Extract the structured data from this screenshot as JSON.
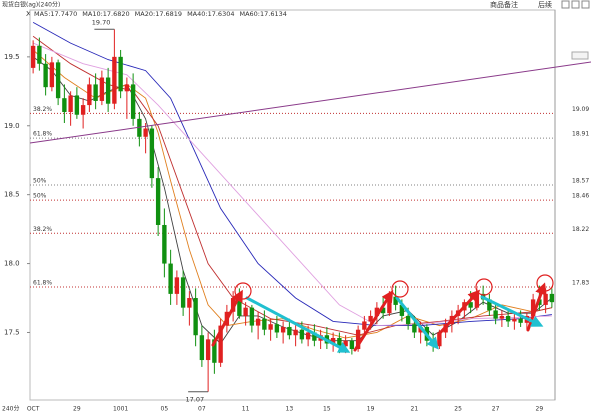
{
  "header": {
    "title": "现货白银(ag)(240分)",
    "close": "X",
    "buttons": [
      "商品备注",
      "后续"
    ]
  },
  "chart_data": {
    "type": "candlestick",
    "period_label": "240分",
    "categories": [
      "OCT",
      null,
      null,
      null,
      null,
      null,
      null,
      "29",
      null,
      null,
      null,
      null,
      null,
      null,
      "1001",
      null,
      null,
      null,
      null,
      null,
      null,
      "05",
      null,
      null,
      null,
      null,
      null,
      "07",
      null,
      null,
      null,
      null,
      null,
      null,
      "11",
      null,
      null,
      null,
      null,
      null,
      null,
      "13",
      null,
      null,
      null,
      null,
      null,
      "15",
      null,
      null,
      null,
      null,
      null,
      null,
      "19",
      null,
      null,
      null,
      null,
      null,
      null,
      "21",
      null,
      null,
      null,
      null,
      null,
      null,
      "25",
      null,
      null,
      null,
      null,
      null,
      "27",
      null,
      null,
      null,
      null,
      null,
      null,
      "29",
      null,
      null
    ],
    "open": [
      19.42,
      19.58,
      19.45,
      19.28,
      19.46,
      19.2,
      19.1,
      19.22,
      19.08,
      19.15,
      19.3,
      19.18,
      19.35,
      19.16,
      19.5,
      19.25,
      19.3,
      19.05,
      18.92,
      18.98,
      18.62,
      18.28,
      18.0,
      17.78,
      17.9,
      17.68,
      17.75,
      17.48,
      17.3,
      17.45,
      17.28,
      17.55,
      17.65,
      17.75,
      17.62,
      17.68,
      17.55,
      17.6,
      17.52,
      17.56,
      17.5,
      17.54,
      17.48,
      17.52,
      17.45,
      17.5,
      17.44,
      17.48,
      17.42,
      17.46,
      17.4,
      17.44,
      17.38,
      17.52,
      17.58,
      17.62,
      17.68,
      17.64,
      17.76,
      17.7,
      17.62,
      17.56,
      17.5,
      17.54,
      17.44,
      17.4,
      17.5,
      17.56,
      17.62,
      17.66,
      17.72,
      17.68,
      17.78,
      17.74,
      17.66,
      17.6,
      17.62,
      17.58,
      17.6,
      17.57,
      17.62,
      17.74,
      17.7,
      17.78
    ],
    "high": [
      19.62,
      19.64,
      19.52,
      19.5,
      19.48,
      19.3,
      19.25,
      19.28,
      19.2,
      19.35,
      19.38,
      19.4,
      19.42,
      19.7,
      19.55,
      19.35,
      19.38,
      19.1,
      19.02,
      19.0,
      18.7,
      18.4,
      18.1,
      17.95,
      17.95,
      17.8,
      17.82,
      17.55,
      17.5,
      17.52,
      17.6,
      17.7,
      17.8,
      17.82,
      17.72,
      17.7,
      17.65,
      17.66,
      17.6,
      17.62,
      17.58,
      17.6,
      17.56,
      17.58,
      17.55,
      17.56,
      17.52,
      17.54,
      17.5,
      17.5,
      17.48,
      17.46,
      17.55,
      17.62,
      17.66,
      17.72,
      17.76,
      17.8,
      17.84,
      17.74,
      17.68,
      17.62,
      17.58,
      17.56,
      17.5,
      17.52,
      17.6,
      17.66,
      17.7,
      17.74,
      17.8,
      17.82,
      17.84,
      17.78,
      17.7,
      17.66,
      17.66,
      17.64,
      17.66,
      17.64,
      17.78,
      17.84,
      17.82,
      17.82
    ],
    "low": [
      19.38,
      19.4,
      19.22,
      19.25,
      19.15,
      19.02,
      19.0,
      19.05,
      18.98,
      19.1,
      19.12,
      19.15,
      19.1,
      19.12,
      19.2,
      19.05,
      19.0,
      18.85,
      18.8,
      18.55,
      18.2,
      17.9,
      17.7,
      17.7,
      17.62,
      17.55,
      17.4,
      17.25,
      17.07,
      17.2,
      17.25,
      17.5,
      17.58,
      17.6,
      17.55,
      17.5,
      17.45,
      17.48,
      17.44,
      17.46,
      17.42,
      17.45,
      17.4,
      17.42,
      17.4,
      17.4,
      17.38,
      17.38,
      17.36,
      17.35,
      17.35,
      17.34,
      17.36,
      17.48,
      17.52,
      17.56,
      17.6,
      17.62,
      17.66,
      17.58,
      17.52,
      17.46,
      17.42,
      17.4,
      17.36,
      17.38,
      17.46,
      17.5,
      17.56,
      17.6,
      17.64,
      17.66,
      17.7,
      17.62,
      17.56,
      17.54,
      17.54,
      17.52,
      17.54,
      17.52,
      17.6,
      17.66,
      17.64,
      17.68
    ],
    "close": [
      19.58,
      19.45,
      19.28,
      19.46,
      19.2,
      19.1,
      19.22,
      19.08,
      19.15,
      19.3,
      19.18,
      19.35,
      19.16,
      19.5,
      19.25,
      19.3,
      19.05,
      18.92,
      18.98,
      18.62,
      18.28,
      18.0,
      17.78,
      17.9,
      17.68,
      17.75,
      17.48,
      17.3,
      17.45,
      17.28,
      17.55,
      17.65,
      17.75,
      17.62,
      17.68,
      17.55,
      17.6,
      17.52,
      17.56,
      17.5,
      17.54,
      17.48,
      17.52,
      17.45,
      17.5,
      17.44,
      17.48,
      17.42,
      17.46,
      17.4,
      17.44,
      17.38,
      17.52,
      17.58,
      17.62,
      17.68,
      17.64,
      17.76,
      17.7,
      17.62,
      17.56,
      17.5,
      17.54,
      17.44,
      17.4,
      17.5,
      17.56,
      17.62,
      17.66,
      17.72,
      17.68,
      17.78,
      17.74,
      17.66,
      17.6,
      17.62,
      17.58,
      17.6,
      17.57,
      17.62,
      17.74,
      17.7,
      17.78,
      17.72
    ],
    "up_color": "#e02020",
    "down_color": "#109010",
    "ma_lines": [
      {
        "name": "MA5:17.7470",
        "color": "#404040",
        "x": [
          0,
          3,
          6,
          9,
          12,
          15,
          18,
          21,
          24,
          27,
          30,
          33,
          36,
          40,
          44,
          48,
          52,
          56,
          60,
          64,
          68,
          72,
          76,
          80,
          83
        ],
        "values": [
          19.5,
          19.4,
          19.22,
          19.18,
          19.25,
          19.3,
          19.05,
          18.55,
          17.95,
          17.55,
          17.42,
          17.62,
          17.62,
          17.54,
          17.48,
          17.44,
          17.44,
          17.62,
          17.66,
          17.48,
          17.58,
          17.72,
          17.64,
          17.64,
          17.75
        ]
      },
      {
        "name": "MA10:17.6820",
        "color": "#e08020",
        "x": [
          0,
          5,
          10,
          15,
          18,
          20,
          22,
          25,
          28,
          31,
          35,
          40,
          45,
          50,
          55,
          60,
          65,
          70,
          75,
          80,
          83
        ],
        "values": [
          19.55,
          19.35,
          19.2,
          19.3,
          19.2,
          18.95,
          18.6,
          18.1,
          17.7,
          17.55,
          17.58,
          17.6,
          17.52,
          17.46,
          17.5,
          17.62,
          17.55,
          17.6,
          17.7,
          17.65,
          17.68
        ]
      },
      {
        "name": "MA20:17.6819",
        "color": "#c03030",
        "x": [
          0,
          6,
          12,
          16,
          20,
          24,
          28,
          32,
          38,
          45,
          52,
          58,
          65,
          72,
          80,
          83
        ],
        "values": [
          19.65,
          19.45,
          19.3,
          19.25,
          19.0,
          18.5,
          18.0,
          17.75,
          17.6,
          17.55,
          17.48,
          17.55,
          17.58,
          17.62,
          17.65,
          17.68
        ]
      },
      {
        "name": "MA40:17.6304",
        "color": "#2828b8",
        "x": [
          0,
          6,
          12,
          18,
          22,
          26,
          30,
          36,
          42,
          48,
          55,
          62,
          70,
          78,
          83
        ],
        "values": [
          19.75,
          19.6,
          19.48,
          19.4,
          19.2,
          18.8,
          18.4,
          18.0,
          17.75,
          17.58,
          17.55,
          17.55,
          17.58,
          17.6,
          17.63
        ]
      },
      {
        "name": "MA60:17.6134",
        "color": "#e0a0e0",
        "x": [
          0,
          8,
          15,
          20,
          26,
          33,
          43,
          49,
          55,
          62,
          70,
          78,
          83
        ],
        "values": [
          19.6,
          19.45,
          19.37,
          19.15,
          18.85,
          18.5,
          18.0,
          17.7,
          17.55,
          17.56,
          17.6,
          17.61,
          17.62
        ]
      }
    ],
    "fib_levels": [
      {
        "ratio": "38.2%",
        "value": 19.09,
        "color": "#c03030"
      },
      {
        "ratio": "61.8%",
        "value": 18.91,
        "color": "#808080"
      },
      {
        "ratio": "50%",
        "value": 18.57,
        "color": "#808080"
      },
      {
        "ratio": "50%",
        "value": 18.46,
        "color": "#c03030"
      },
      {
        "ratio": "38.2%",
        "value": 18.22,
        "color": "#c03030"
      },
      {
        "ratio": "61.8%",
        "value": 17.83,
        "color": "#c03030"
      }
    ],
    "high_label": {
      "value": 19.7,
      "label": "19.70",
      "index": 13
    },
    "low_label": {
      "value": 17.07,
      "label": "17.07",
      "index": 28
    },
    "ylim": [
      17.01,
      19.84
    ],
    "yticks": [
      {
        "value": 17.5,
        "label": "17.5"
      },
      {
        "value": 18,
        "label": "18.0"
      },
      {
        "value": 18.5,
        "label": "18.5"
      },
      {
        "value": 19,
        "label": "19.0"
      },
      {
        "value": 19.5,
        "label": "19.5"
      }
    ]
  }
}
